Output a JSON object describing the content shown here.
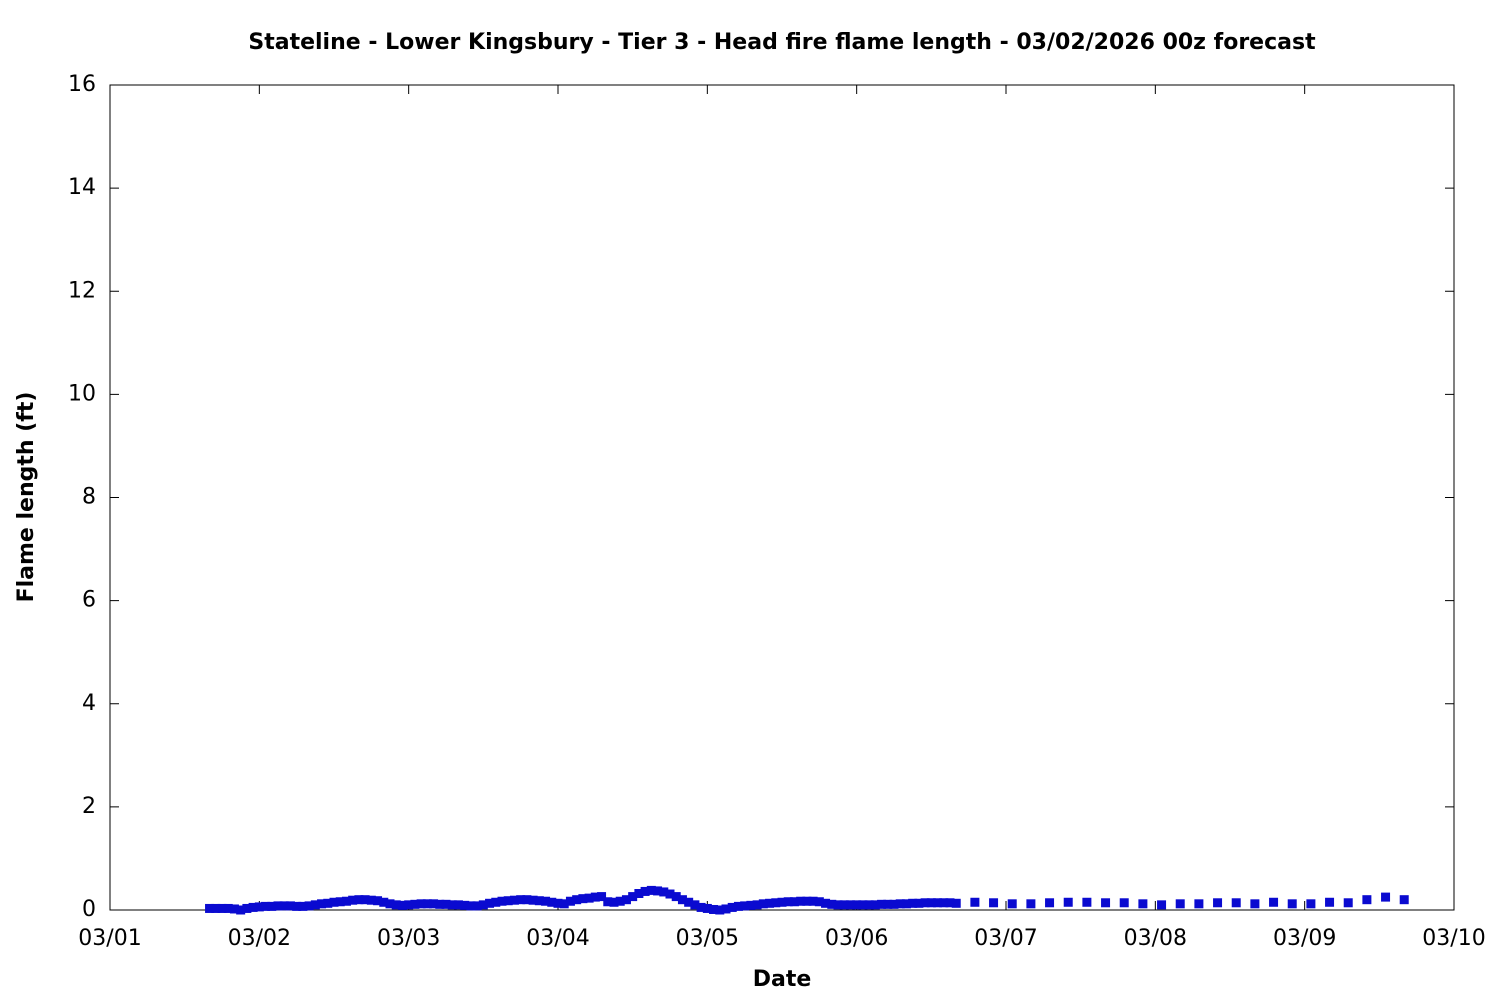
{
  "chart_data": {
    "type": "scatter",
    "title": "Stateline - Lower Kingsbury - Tier 3 - Head fire flame length - 03/02/2026 00z forecast",
    "xlabel": "Date",
    "ylabel": "Flame length (ft)",
    "xlim": [
      0,
      216
    ],
    "ylim": [
      0,
      16
    ],
    "xticks": [
      {
        "value": 0,
        "label": "03/01"
      },
      {
        "value": 24,
        "label": "03/02"
      },
      {
        "value": 48,
        "label": "03/03"
      },
      {
        "value": 72,
        "label": "03/04"
      },
      {
        "value": 96,
        "label": "03/05"
      },
      {
        "value": 120,
        "label": "03/06"
      },
      {
        "value": 144,
        "label": "03/07"
      },
      {
        "value": 168,
        "label": "03/08"
      },
      {
        "value": 192,
        "label": "03/09"
      },
      {
        "value": 216,
        "label": "03/10"
      }
    ],
    "yticks": [
      0,
      2,
      4,
      6,
      8,
      10,
      12,
      14,
      16
    ],
    "color": "#0a0ad0",
    "x": [
      16,
      17,
      18,
      19,
      20,
      21,
      22,
      23,
      24,
      25,
      26,
      27,
      28,
      29,
      30,
      31,
      32,
      33,
      34,
      35,
      36,
      37,
      38,
      39,
      40,
      41,
      42,
      43,
      44,
      45,
      46,
      47,
      48,
      49,
      50,
      51,
      52,
      53,
      54,
      55,
      56,
      57,
      58,
      59,
      60,
      61,
      62,
      63,
      64,
      65,
      66,
      67,
      68,
      69,
      70,
      71,
      72,
      73,
      74,
      75,
      76,
      77,
      78,
      79,
      80,
      81,
      82,
      83,
      84,
      85,
      86,
      87,
      88,
      89,
      90,
      91,
      92,
      93,
      94,
      95,
      96,
      97,
      98,
      99,
      100,
      101,
      102,
      103,
      104,
      105,
      106,
      107,
      108,
      109,
      110,
      111,
      112,
      113,
      114,
      115,
      116,
      117,
      118,
      119,
      120,
      121,
      122,
      123,
      124,
      125,
      126,
      127,
      128,
      129,
      130,
      131,
      132,
      133,
      134,
      135,
      136,
      139,
      142,
      145,
      148,
      151,
      154,
      157,
      160,
      163,
      166,
      169,
      172,
      175,
      178,
      181,
      184,
      187,
      190,
      193,
      196,
      199,
      202,
      205,
      208
    ],
    "values": [
      0.03,
      0.03,
      0.03,
      0.03,
      0.02,
      0.0,
      0.03,
      0.05,
      0.06,
      0.07,
      0.07,
      0.08,
      0.08,
      0.08,
      0.07,
      0.07,
      0.08,
      0.1,
      0.12,
      0.13,
      0.15,
      0.16,
      0.17,
      0.19,
      0.2,
      0.2,
      0.19,
      0.18,
      0.15,
      0.12,
      0.1,
      0.09,
      0.1,
      0.11,
      0.12,
      0.12,
      0.12,
      0.11,
      0.11,
      0.1,
      0.1,
      0.09,
      0.08,
      0.08,
      0.1,
      0.13,
      0.15,
      0.17,
      0.18,
      0.19,
      0.2,
      0.2,
      0.19,
      0.18,
      0.17,
      0.15,
      0.13,
      0.12,
      0.17,
      0.2,
      0.22,
      0.23,
      0.25,
      0.26,
      0.16,
      0.15,
      0.17,
      0.2,
      0.26,
      0.32,
      0.36,
      0.38,
      0.37,
      0.35,
      0.31,
      0.26,
      0.2,
      0.15,
      0.1,
      0.05,
      0.03,
      0.01,
      0.0,
      0.02,
      0.05,
      0.07,
      0.08,
      0.09,
      0.1,
      0.12,
      0.13,
      0.14,
      0.15,
      0.16,
      0.16,
      0.17,
      0.17,
      0.17,
      0.16,
      0.13,
      0.11,
      0.1,
      0.1,
      0.1,
      0.1,
      0.1,
      0.1,
      0.1,
      0.11,
      0.11,
      0.11,
      0.12,
      0.12,
      0.13,
      0.13,
      0.14,
      0.14,
      0.14,
      0.14,
      0.14,
      0.13,
      0.15,
      0.14,
      0.12,
      0.12,
      0.14,
      0.15,
      0.15,
      0.14,
      0.14,
      0.12,
      0.1,
      0.12,
      0.12,
      0.14,
      0.14,
      0.12,
      0.15,
      0.12,
      0.12,
      0.15,
      0.14,
      0.2,
      0.25,
      0.2
    ]
  }
}
